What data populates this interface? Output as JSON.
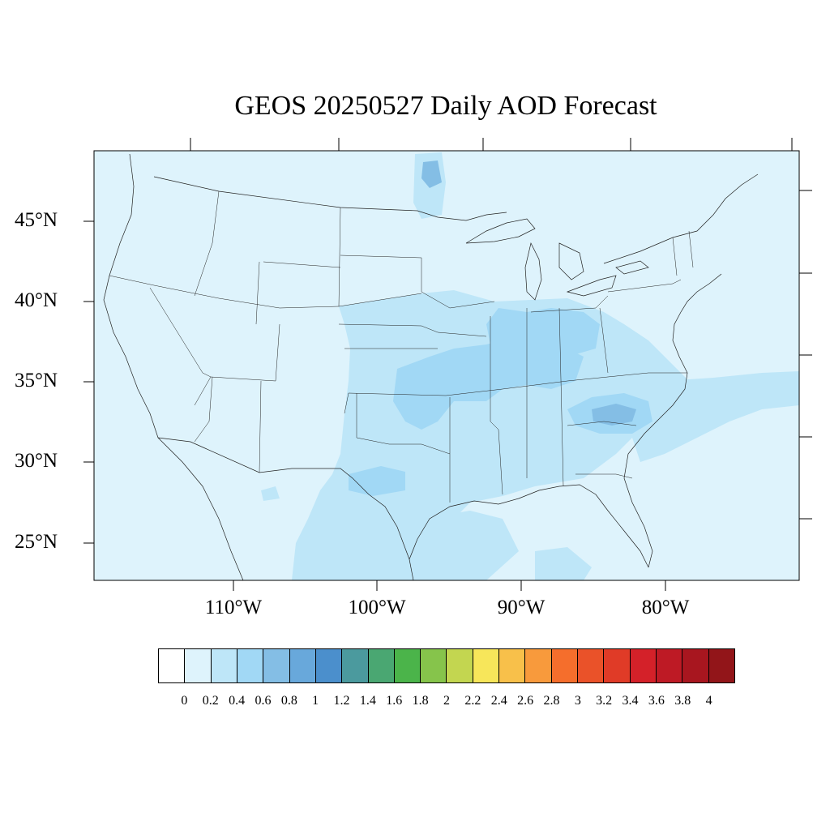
{
  "title": "GEOS 20250527 Daily AOD Forecast",
  "map": {
    "projection": "lambert-conformal",
    "background_color": "#def3fc",
    "latitude_labels": [
      "45°N",
      "40°N",
      "35°N",
      "30°N",
      "25°N"
    ],
    "longitude_labels": [
      "110°W",
      "100°W",
      "90°W",
      "80°W"
    ]
  },
  "colorbar": {
    "labels": [
      "0",
      "0.2",
      "0.4",
      "0.6",
      "0.8",
      "1",
      "1.2",
      "1.4",
      "1.6",
      "1.8",
      "2",
      "2.2",
      "2.4",
      "2.6",
      "2.8",
      "3",
      "3.2",
      "3.4",
      "3.6",
      "3.8",
      "4"
    ],
    "colors": [
      "#ffffff",
      "#def3fc",
      "#bee6f8",
      "#a1d8f5",
      "#84bee5",
      "#68a8db",
      "#4b8fcc",
      "#4b9a9e",
      "#4aa772",
      "#4bb44a",
      "#86c44b",
      "#c3d650",
      "#f7e65a",
      "#f8c04a",
      "#f89a3c",
      "#f56e2c",
      "#ea5229",
      "#e03b27",
      "#d42129",
      "#be1a25",
      "#a8161f",
      "#921519"
    ]
  },
  "chart_data": {
    "type": "heatmap",
    "title": "GEOS 20250527 Daily AOD Forecast",
    "variable": "AOD",
    "date": "20250527",
    "colorbar_levels": [
      0,
      0.2,
      0.4,
      0.6,
      0.8,
      1,
      1.2,
      1.4,
      1.6,
      1.8,
      2,
      2.2,
      2.4,
      2.6,
      2.8,
      3,
      3.2,
      3.4,
      3.6,
      3.8,
      4
    ],
    "lat_range": [
      23,
      49
    ],
    "lon_range": [
      -120,
      -71
    ],
    "regions": [
      {
        "name": "background",
        "aod": 0.1
      },
      {
        "name": "central plains and southern plains",
        "aod": 0.3
      },
      {
        "name": "ohio valley and mid-mississippi",
        "aod": 0.5
      },
      {
        "name": "south carolina and georgia",
        "aod": 0.7
      },
      {
        "name": "northern minnesota",
        "aod": 0.7
      },
      {
        "name": "atlantic offshore plume",
        "aod": 0.3
      },
      {
        "name": "western gulf of mexico",
        "aod": 0.3
      }
    ]
  }
}
